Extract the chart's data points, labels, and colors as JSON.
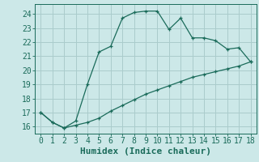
{
  "title": "",
  "xlabel": "Humidex (Indice chaleur)",
  "background_color": "#cce8e8",
  "grid_color": "#aacccc",
  "line_color": "#1a6b5a",
  "x_upper": [
    0,
    1,
    2,
    3,
    4,
    5,
    6,
    7,
    8,
    9,
    10,
    11,
    12,
    13,
    14,
    15,
    16,
    17,
    18
  ],
  "y_upper": [
    17.0,
    16.3,
    15.9,
    16.4,
    19.0,
    21.3,
    21.7,
    23.7,
    24.1,
    24.2,
    24.2,
    22.9,
    23.7,
    22.3,
    22.3,
    22.1,
    21.5,
    21.6,
    20.6
  ],
  "x_lower": [
    0,
    1,
    2,
    3,
    4,
    5,
    6,
    7,
    8,
    9,
    10,
    11,
    12,
    13,
    14,
    15,
    16,
    17,
    18
  ],
  "y_lower": [
    17.0,
    16.3,
    15.9,
    16.1,
    16.3,
    16.6,
    17.1,
    17.5,
    17.9,
    18.3,
    18.6,
    18.9,
    19.2,
    19.5,
    19.7,
    19.9,
    20.1,
    20.3,
    20.6
  ],
  "ylim": [
    15.5,
    24.7
  ],
  "xlim": [
    -0.5,
    18.5
  ],
  "yticks": [
    16,
    17,
    18,
    19,
    20,
    21,
    22,
    23,
    24
  ],
  "xticks": [
    0,
    1,
    2,
    3,
    4,
    5,
    6,
    7,
    8,
    9,
    10,
    11,
    12,
    13,
    14,
    15,
    16,
    17,
    18
  ],
  "tick_fontsize": 7,
  "xlabel_fontsize": 8
}
